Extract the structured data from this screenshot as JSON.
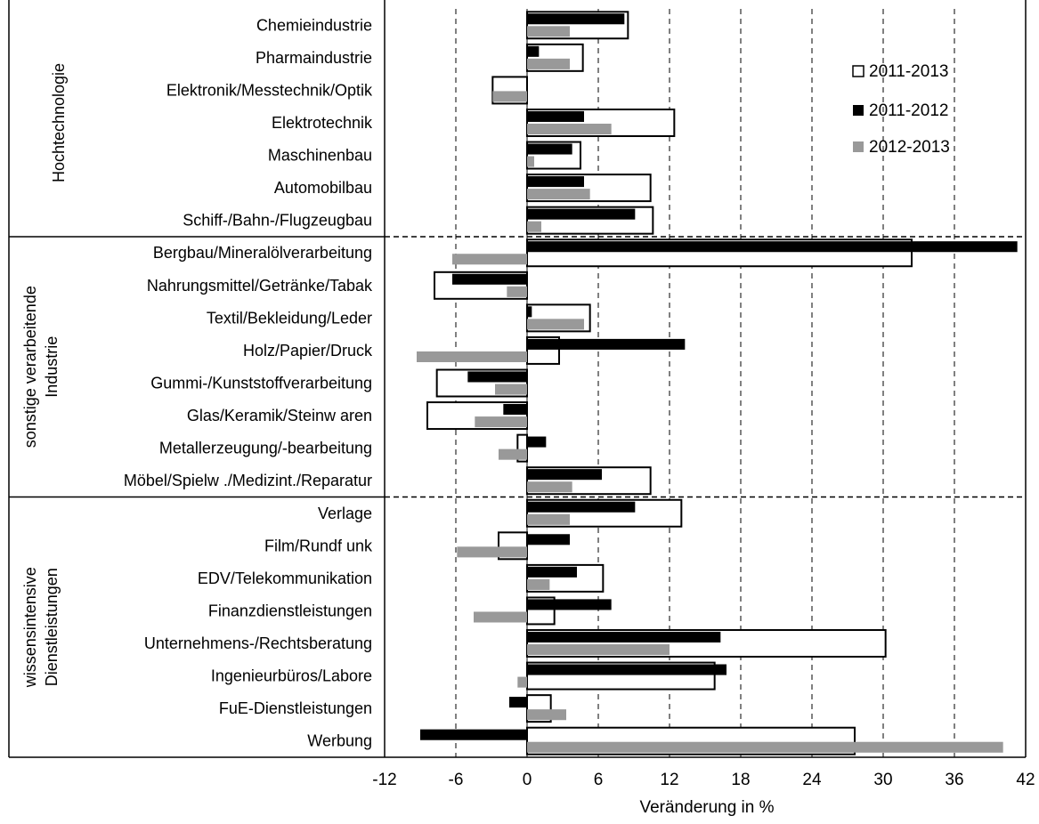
{
  "chart_data": {
    "type": "bar",
    "orientation": "horizontal",
    "xlabel": "Veränderung in %",
    "xlim": [
      -12,
      42
    ],
    "xticks": [
      -12,
      -6,
      0,
      6,
      12,
      18,
      24,
      30,
      36,
      42
    ],
    "grid": "vertical dashed",
    "legend_position": "top-right",
    "categories": [
      "Chemieindustrie",
      "Pharmaindustrie",
      "Elektronik/Messtechnik/Optik",
      "Elektrotechnik",
      "Maschinenbau",
      "Automobilbau",
      "Schiff-/Bahn-/Flugzeugbau",
      "Bergbau/Mineralölverarbeitung",
      "Nahrungsmittel/Getränke/Tabak",
      "Textil/Bekleidung/Leder",
      "Holz/Papier/Druck",
      "Gummi-/Kunststoffverarbeitung",
      "Glas/Keramik/Steinw aren",
      "Metallerzeugung/-bearbeitung",
      "Möbel/Spielw ./Medizint./Reparatur",
      "Verlage",
      "Film/Rundf unk",
      "EDV/Telekommunikation",
      "Finanzdienstleistungen",
      "Unternehmens-/Rechtsberatung",
      "Ingenieurbüros/Labore",
      "FuE-Dienstleistungen",
      "Werbung"
    ],
    "groups": [
      {
        "label": "Hochtechnologie",
        "start": 0,
        "end": 6
      },
      {
        "label_lines": [
          "sonstige verarbeitende",
          "Industrie"
        ],
        "start": 7,
        "end": 14
      },
      {
        "label_lines": [
          "wissensintensive",
          "Dienstleistungen"
        ],
        "start": 15,
        "end": 22
      }
    ],
    "series": [
      {
        "name": "2011-2013",
        "style": "outline",
        "color": "#ffffff",
        "values": [
          8.5,
          4.7,
          -2.9,
          12.4,
          4.5,
          10.4,
          10.6,
          32.4,
          -7.8,
          5.3,
          2.7,
          -7.6,
          -8.4,
          -0.8,
          10.4,
          13.0,
          -2.4,
          6.4,
          2.3,
          30.2,
          15.8,
          2.0,
          27.6
        ]
      },
      {
        "name": "2011-2012",
        "style": "filled",
        "color": "#000000",
        "values": [
          8.2,
          1.0,
          0,
          4.8,
          3.8,
          4.8,
          9.1,
          41.3,
          -6.3,
          0.4,
          13.3,
          -5.0,
          -2.0,
          1.6,
          6.3,
          9.1,
          3.6,
          4.2,
          7.1,
          16.3,
          16.8,
          -1.5,
          -9.0
        ]
      },
      {
        "name": "2012-2013",
        "style": "filled",
        "color": "#999999",
        "values": [
          3.6,
          3.6,
          -2.9,
          7.1,
          0.6,
          5.3,
          1.2,
          -6.3,
          -1.7,
          4.8,
          -9.3,
          -2.7,
          -4.4,
          -2.4,
          3.8,
          3.6,
          -5.9,
          1.9,
          -4.5,
          12.0,
          -0.8,
          3.3,
          40.1
        ]
      }
    ]
  }
}
